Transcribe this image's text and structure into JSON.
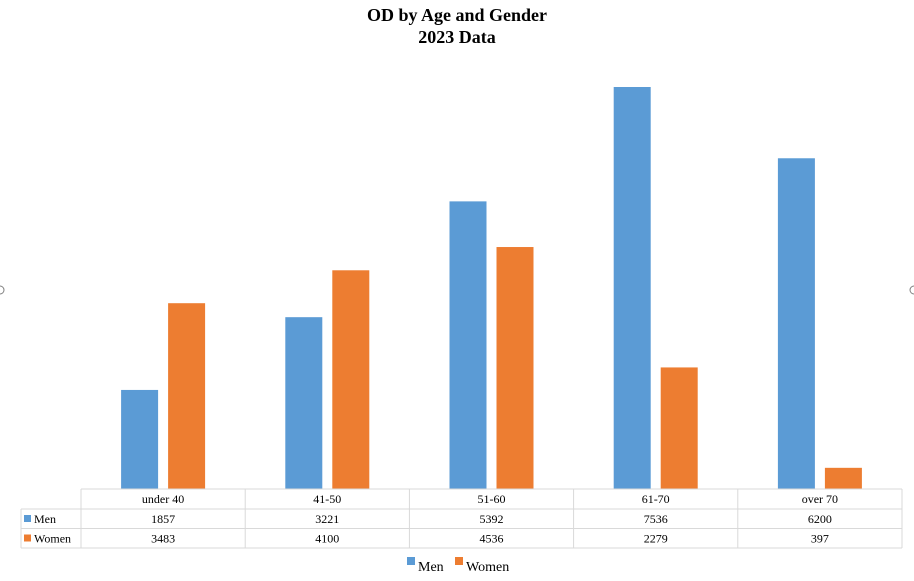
{
  "chart_data": {
    "type": "bar",
    "title": "OD by Age and Gender",
    "subtitle": "2023 Data",
    "categories": [
      "under 40",
      "41-50",
      "51-60",
      "61-70",
      "over 70"
    ],
    "series": [
      {
        "name": "Men",
        "values": [
          1857,
          3221,
          5392,
          7536,
          6200
        ],
        "color": "#5b9bd5"
      },
      {
        "name": "Women",
        "values": [
          3483,
          4100,
          4536,
          2279,
          397
        ],
        "color": "#ed7d31"
      }
    ],
    "ylim": [
      0,
      7536
    ],
    "xlabel": "",
    "ylabel": "",
    "grid": false,
    "data_table": true,
    "legend_position": "bottom"
  }
}
